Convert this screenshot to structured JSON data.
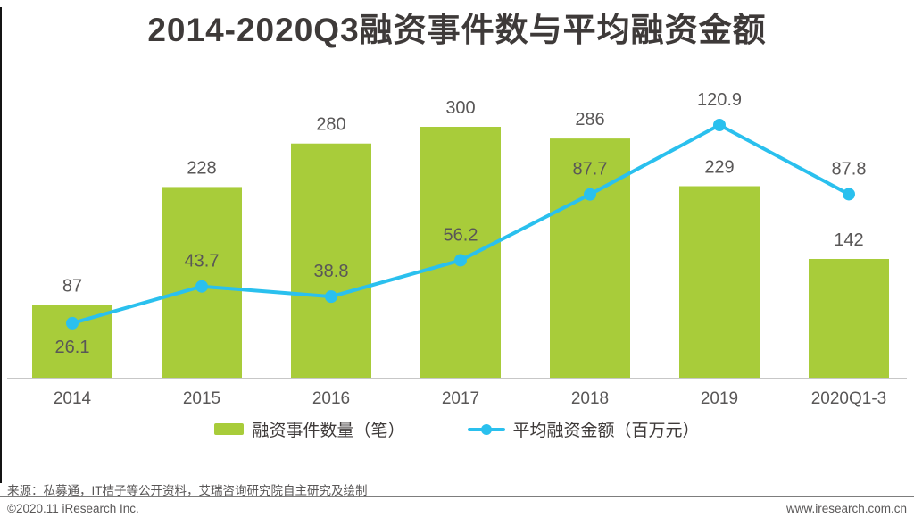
{
  "title": "2014-2020Q3融资事件数与平均融资金额",
  "legend": {
    "bar_label": "融资事件数量（笔）",
    "line_label": "平均融资金额（百万元）"
  },
  "footer": {
    "source": "来源：私募通，IT桔子等公开资料，艾瑞咨询研究院自主研究及绘制",
    "copyright": "©2020.11 iResearch Inc.",
    "website": "www.iresearch.com.cn"
  },
  "colors": {
    "bar": "#a8cc3a",
    "line": "#2ac0ee",
    "value_label": "#595757",
    "axis_label": "#595757",
    "title_text": "#3e3a39",
    "axis_line": "#c7c7c7"
  },
  "chart_data": {
    "type": "bar+line",
    "title": "2014-2020Q3融资事件数与平均融资金额",
    "categories": [
      "2014",
      "2015",
      "2016",
      "2017",
      "2018",
      "2019",
      "2020Q1-3"
    ],
    "series": [
      {
        "name": "融资事件数量（笔）",
        "type": "bar",
        "values": [
          87,
          228,
          280,
          300,
          286,
          229,
          142
        ]
      },
      {
        "name": "平均融资金额（百万元）",
        "type": "line",
        "values": [
          26.1,
          43.7,
          38.8,
          56.2,
          87.7,
          120.9,
          87.8
        ],
        "label_below_indices": [
          0
        ]
      }
    ],
    "ylim_bar": [
      0,
      320
    ],
    "ylim_line": [
      0,
      135
    ],
    "grid": false,
    "legend_position": "bottom",
    "data_labels": true
  }
}
